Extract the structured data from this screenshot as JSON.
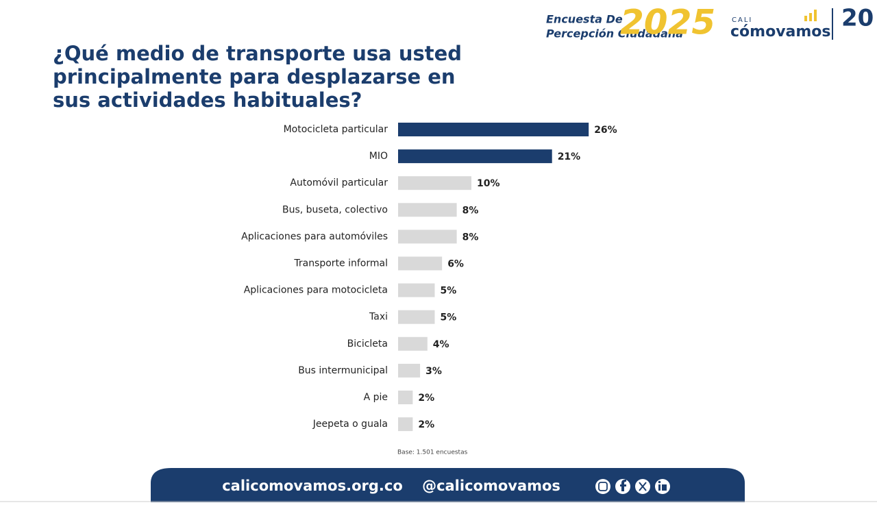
{
  "header": {
    "survey_line1": "Encuesta De",
    "survey_line2": "Percepción Ciudadana",
    "year": "2025",
    "city": "CALI",
    "brand": "cómovamos",
    "anniversary": "20"
  },
  "chart_data": {
    "type": "hbar",
    "title": "¿Qué medio de transporte usa usted principalmente para desplazarse en sus actividades habituales?",
    "categories": [
      "Motocicleta particular",
      "MIO",
      "Automóvil particular",
      "Bus, buseta, colectivo",
      "Aplicaciones para automóviles",
      "Transporte informal",
      "Aplicaciones para motocicleta",
      "Taxi",
      "Bicicleta",
      "Bus intermunicipal",
      "A pie",
      "Jeepeta o guala"
    ],
    "values": [
      26,
      21,
      10,
      8,
      8,
      6,
      5,
      5,
      4,
      3,
      2,
      2
    ],
    "value_labels": [
      "26%",
      "21%",
      "10%",
      "8%",
      "8%",
      "6%",
      "5%",
      "5%",
      "4%",
      "3%",
      "2%",
      "2%"
    ],
    "colors": [
      "#1b3d6d",
      "#1b3d6d",
      "#d9d9d9",
      "#d9d9d9",
      "#d9d9d9",
      "#d9d9d9",
      "#d9d9d9",
      "#d9d9d9",
      "#d9d9d9",
      "#d9d9d9",
      "#d9d9d9",
      "#d9d9d9"
    ],
    "note": "Base: 1.501 encuestas"
  },
  "footer": {
    "website": "calicomovamos.org.co",
    "handle": "@calicomovamos"
  }
}
